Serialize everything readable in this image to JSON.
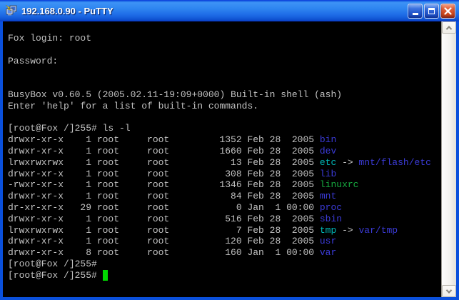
{
  "window": {
    "title": "192.168.0.90 - PuTTY",
    "icon": "putty-terminals-lightning-icon",
    "controls": {
      "minimize": "minimize",
      "maximize": "maximize",
      "close": "close"
    }
  },
  "colors": {
    "terminal_background": "#000000",
    "terminal_foreground": "#C2C2C2",
    "directory_blue": "#3B3BD8",
    "symlink_cyan": "#00B8B8",
    "executable_green": "#17AB40",
    "cursor_green": "#00D800",
    "titlebar_blue": "#2E85F0",
    "window_border_blue": "#0A50DC",
    "close_button_red": "#D04A20"
  },
  "terminal": {
    "prompt": "[root@Fox /]255#",
    "lines": [
      [
        {
          "t": "Fox login: root",
          "c": "fg"
        }
      ],
      [],
      [
        {
          "t": "Password:",
          "c": "fg"
        }
      ],
      [],
      [],
      [
        {
          "t": "BusyBox v0.60.5 (2005.02.11-19:09+0000) Built-in shell (ash)",
          "c": "fg"
        }
      ],
      [
        {
          "t": "Enter 'help' for a list of built-in commands.",
          "c": "fg"
        }
      ],
      [],
      [
        {
          "t": "[root@Fox /]255# ls -l",
          "c": "fg"
        }
      ],
      [
        {
          "t": "drwxr-xr-x    1 root     root         1352 Feb 28  2005 ",
          "c": "fg"
        },
        {
          "t": "bin",
          "c": "dir"
        }
      ],
      [
        {
          "t": "drwxr-xr-x    1 root     root         1660 Feb 28  2005 ",
          "c": "fg"
        },
        {
          "t": "dev",
          "c": "dir"
        }
      ],
      [
        {
          "t": "lrwxrwxrwx    1 root     root           13 Feb 28  2005 ",
          "c": "fg"
        },
        {
          "t": "etc",
          "c": "link"
        },
        {
          "t": " -> ",
          "c": "fg"
        },
        {
          "t": "mnt/flash/etc",
          "c": "dir"
        }
      ],
      [
        {
          "t": "drwxr-xr-x    1 root     root          308 Feb 28  2005 ",
          "c": "fg"
        },
        {
          "t": "lib",
          "c": "dir"
        }
      ],
      [
        {
          "t": "-rwxr-xr-x    1 root     root         1346 Feb 28  2005 ",
          "c": "fg"
        },
        {
          "t": "linuxrc",
          "c": "exec"
        }
      ],
      [
        {
          "t": "drwxr-xr-x    1 root     root           84 Feb 28  2005 ",
          "c": "fg"
        },
        {
          "t": "mnt",
          "c": "dir"
        }
      ],
      [
        {
          "t": "dr-xr-xr-x   29 root     root            0 Jan  1 00:00 ",
          "c": "fg"
        },
        {
          "t": "proc",
          "c": "dir"
        }
      ],
      [
        {
          "t": "drwxr-xr-x    1 root     root          516 Feb 28  2005 ",
          "c": "fg"
        },
        {
          "t": "sbin",
          "c": "dir"
        }
      ],
      [
        {
          "t": "lrwxrwxrwx    1 root     root            7 Feb 28  2005 ",
          "c": "fg"
        },
        {
          "t": "tmp",
          "c": "link"
        },
        {
          "t": " -> ",
          "c": "fg"
        },
        {
          "t": "var/tmp",
          "c": "dir"
        }
      ],
      [
        {
          "t": "drwxr-xr-x    1 root     root          120 Feb 28  2005 ",
          "c": "fg"
        },
        {
          "t": "usr",
          "c": "dir"
        }
      ],
      [
        {
          "t": "drwxr-xr-x    8 root     root          160 Jan  1 00:00 ",
          "c": "fg"
        },
        {
          "t": "var",
          "c": "dir"
        }
      ],
      [
        {
          "t": "[root@Fox /]255#",
          "c": "fg"
        }
      ],
      [
        {
          "t": "[root@Fox /]255# ",
          "c": "fg"
        },
        {
          "t": " ",
          "c": "cursor"
        }
      ]
    ]
  },
  "scrollbar": {
    "up_icon": "chevron-up-icon",
    "down_icon": "chevron-down-icon"
  }
}
